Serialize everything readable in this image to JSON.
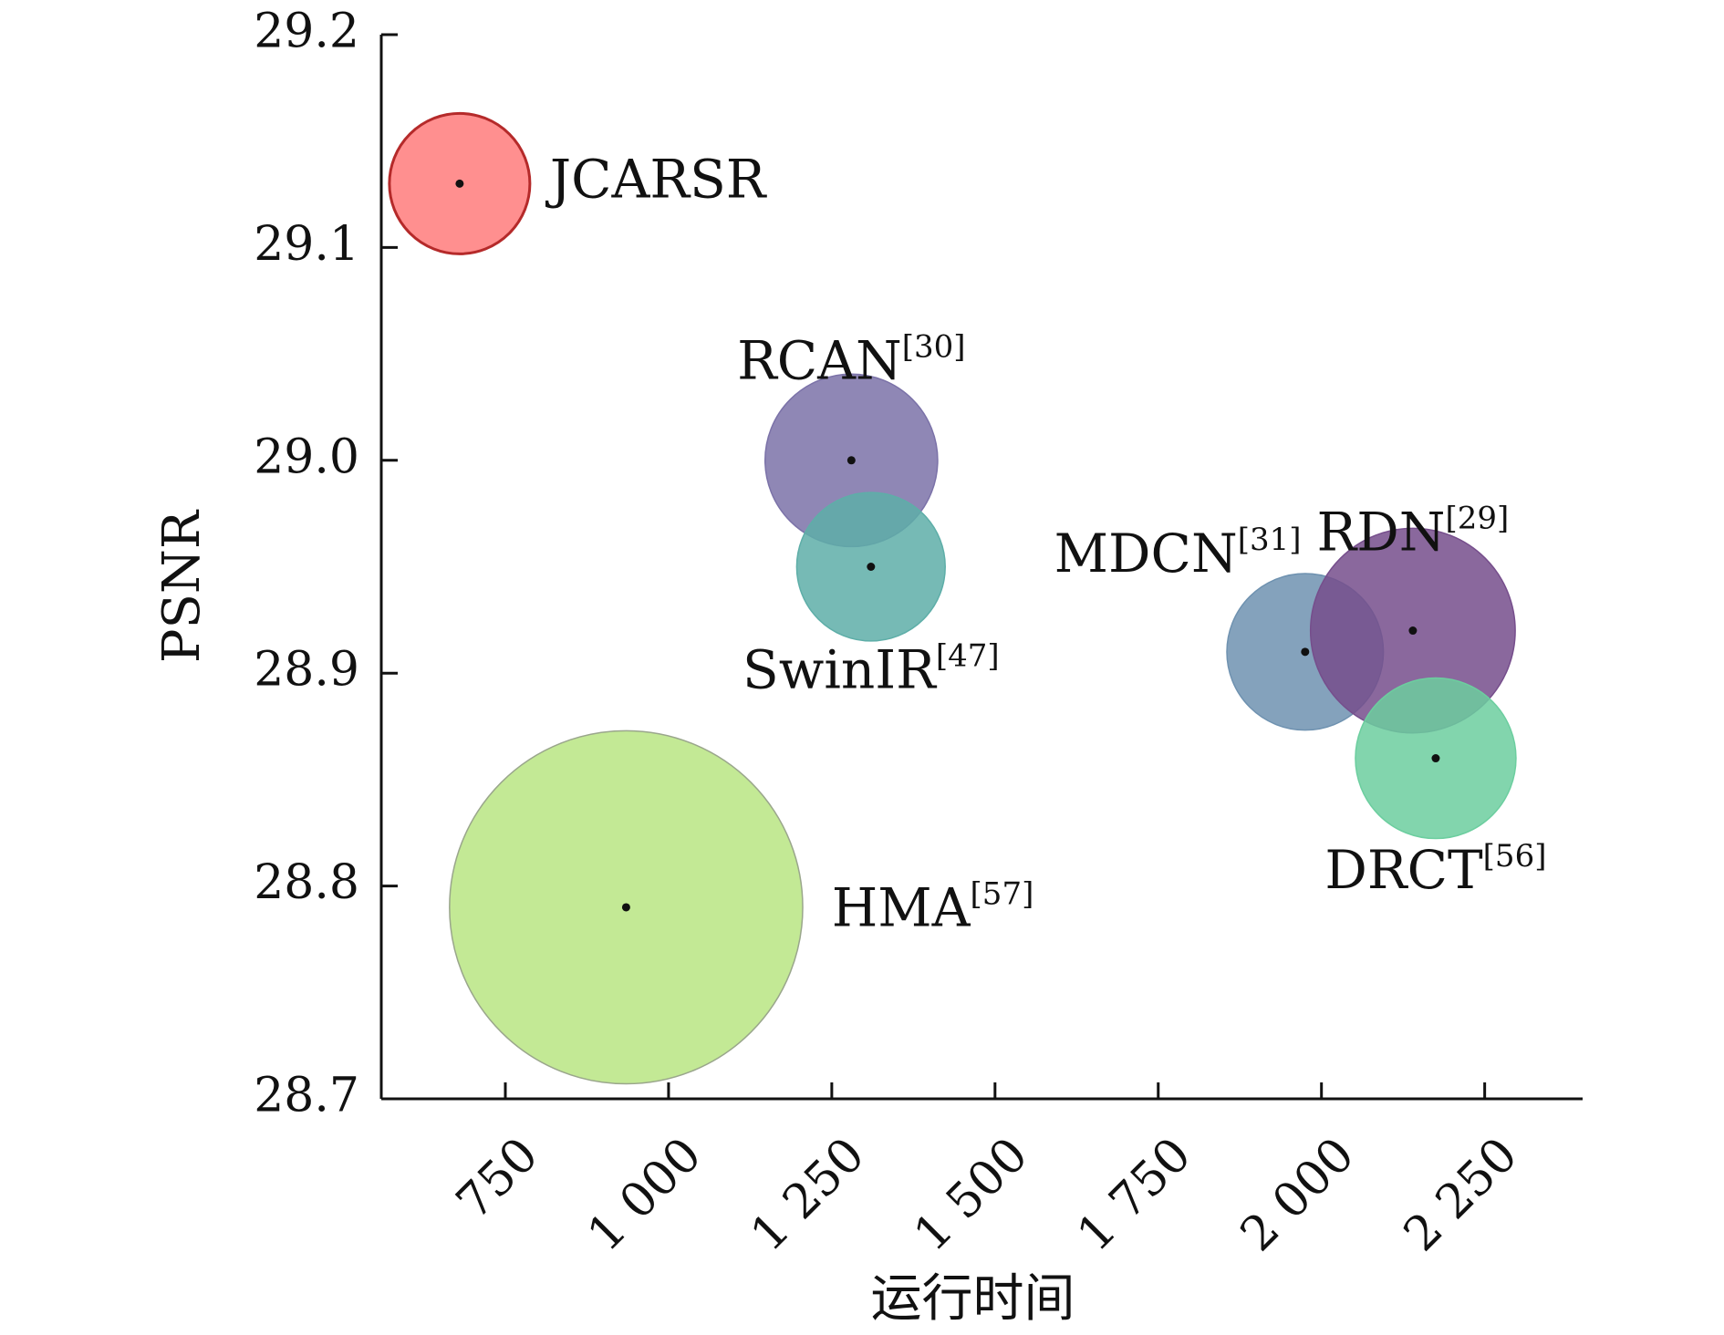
{
  "chart_data": {
    "type": "scatter",
    "title": "",
    "xlabel": "运行时间",
    "ylabel": "PSNR",
    "xlim": [
      560,
      2400
    ],
    "ylim": [
      28.7,
      29.2
    ],
    "x_ticks": [
      750,
      1000,
      1250,
      1500,
      1750,
      2000,
      2250
    ],
    "x_tick_labels": [
      "750",
      "1 000",
      "1 250",
      "1 500",
      "1 750",
      "2 000",
      "2 250"
    ],
    "y_ticks": [
      28.7,
      28.8,
      28.9,
      29.0,
      29.1,
      29.2
    ],
    "y_tick_labels": [
      "28.7",
      "28.8",
      "28.9",
      "29.0",
      "29.1",
      "29.2"
    ],
    "grid": false,
    "legend": "none",
    "series": [
      {
        "name": "JCARSR",
        "ref": "",
        "x": 680,
        "y": 29.13,
        "size": 0.35,
        "color": "#ff7b7b",
        "edge": "#b52a2a"
      },
      {
        "name": "RCAN",
        "ref": "[30]",
        "x": 1280,
        "y": 29.0,
        "size": 0.43,
        "color": "#7b72a8",
        "edge": "#7b72a8"
      },
      {
        "name": "SwinIR",
        "ref": "[47]",
        "x": 1310,
        "y": 28.95,
        "size": 0.37,
        "color": "#5eaea8",
        "edge": "#5eaea8"
      },
      {
        "name": "MDCN",
        "ref": "[31]",
        "x": 1975,
        "y": 28.91,
        "size": 0.39,
        "color": "#6f92b0",
        "edge": "#6f92b0"
      },
      {
        "name": "RDN",
        "ref": "[29]",
        "x": 2140,
        "y": 28.92,
        "size": 0.51,
        "color": "#764e8c",
        "edge": "#764e8c"
      },
      {
        "name": "DRCT",
        "ref": "[56]",
        "x": 2175,
        "y": 28.86,
        "size": 0.4,
        "color": "#6cce9f",
        "edge": "#6cce9f"
      },
      {
        "name": "HMA",
        "ref": "[57]",
        "x": 935,
        "y": 28.79,
        "size": 0.88,
        "color": "#b9e583",
        "edge": "#9aa68c"
      }
    ]
  }
}
